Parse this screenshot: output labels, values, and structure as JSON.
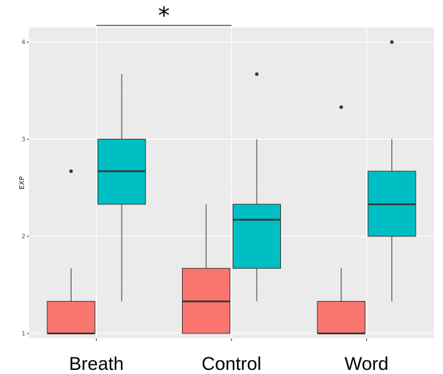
{
  "chart_data": {
    "type": "boxplot",
    "title": "",
    "xlabel": "",
    "ylabel": "EXP",
    "ylim": [
      0.95,
      4.15
    ],
    "yticks": [
      1,
      2,
      3,
      4
    ],
    "categories": [
      "Breath",
      "Control",
      "Word"
    ],
    "grid": true,
    "legend": "none",
    "series": [
      {
        "color": "#F8766D",
        "boxes": [
          {
            "category": "Breath",
            "min": 1.0,
            "q1": 1.0,
            "median": 1.0,
            "q3": 1.33,
            "max": 1.67,
            "outliers": [
              2.67
            ]
          },
          {
            "category": "Control",
            "min": 1.0,
            "q1": 1.0,
            "median": 1.33,
            "q3": 1.67,
            "max": 2.33,
            "outliers": []
          },
          {
            "category": "Word",
            "min": 1.0,
            "q1": 1.0,
            "median": 1.0,
            "q3": 1.33,
            "max": 1.67,
            "outliers": [
              3.33
            ]
          }
        ]
      },
      {
        "color": "#00BFC4",
        "boxes": [
          {
            "category": "Breath",
            "min": 1.33,
            "q1": 2.33,
            "median": 2.67,
            "q3": 3.0,
            "max": 3.67,
            "outliers": []
          },
          {
            "category": "Control",
            "min": 1.33,
            "q1": 1.67,
            "median": 2.17,
            "q3": 2.33,
            "max": 3.0,
            "outliers": [
              3.67
            ]
          },
          {
            "category": "Word",
            "min": 1.33,
            "q1": 2.0,
            "median": 2.33,
            "q3": 2.67,
            "max": 3.0,
            "outliers": [
              4.0
            ]
          }
        ]
      }
    ],
    "annotations": [
      {
        "text": "*",
        "from": "Breath",
        "to": "Control"
      }
    ]
  }
}
